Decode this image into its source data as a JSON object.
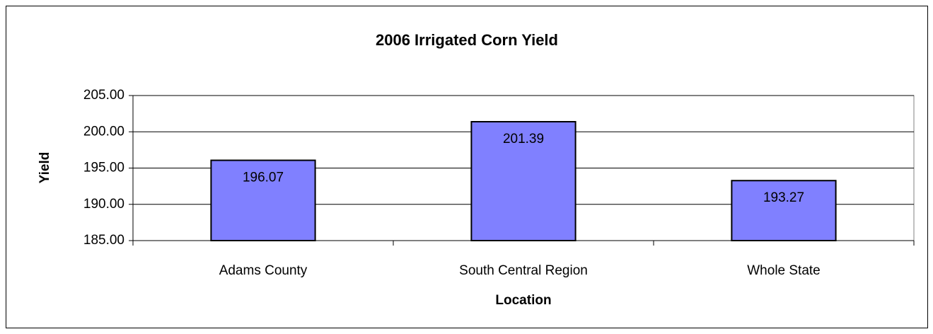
{
  "chart_data": {
    "type": "bar",
    "title": "2006 Irrigated Corn Yield",
    "x_label": "Location",
    "y_label": "Yield",
    "categories": [
      "Adams County",
      "South Central Region",
      "Whole State"
    ],
    "values": [
      196.07,
      201.39,
      193.27
    ],
    "color": "#8080ff",
    "ylim": [
      185,
      205
    ],
    "yticks": [
      {
        "value": 185,
        "label": "185.00"
      },
      {
        "value": 190,
        "label": "190.00"
      },
      {
        "value": 195,
        "label": "195.00"
      },
      {
        "value": 200,
        "label": "200.00"
      },
      {
        "value": 205,
        "label": "205.00"
      }
    ],
    "grid": true
  }
}
